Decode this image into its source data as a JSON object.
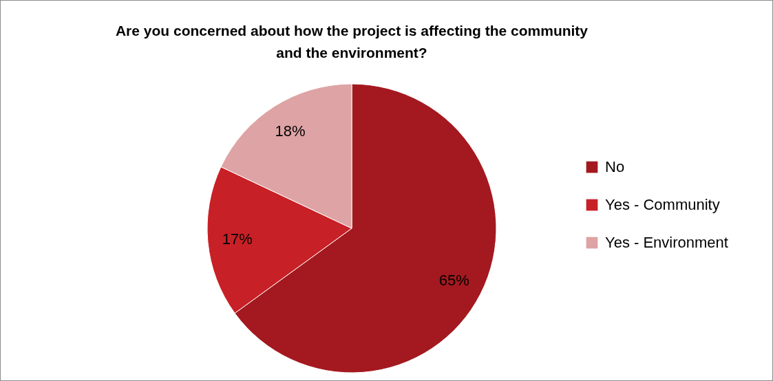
{
  "chart_data": {
    "type": "pie",
    "title": "Are you concerned about how the project is affecting the community and the environment?",
    "categories": [
      "No",
      "Yes - Community",
      "Yes - Environment"
    ],
    "values": [
      65,
      17,
      18
    ],
    "colors": [
      "#a3191f",
      "#c82027",
      "#dea3a4"
    ],
    "value_labels": [
      "65%",
      "17%",
      "18%"
    ],
    "legend": "right"
  }
}
